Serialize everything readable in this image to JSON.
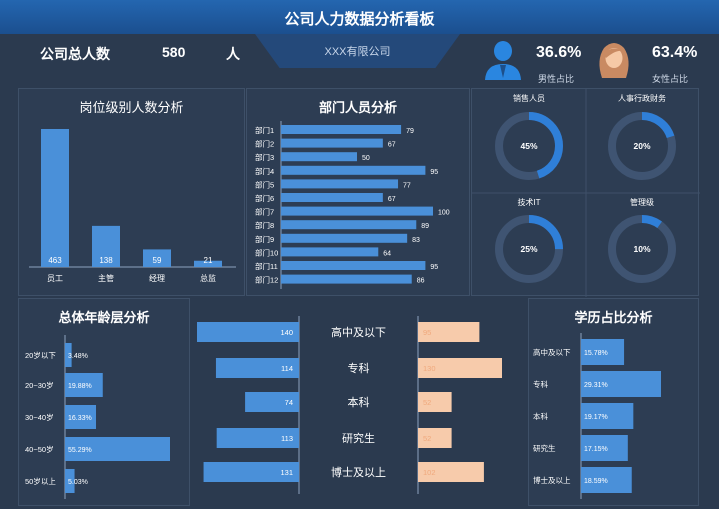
{
  "header": {
    "title": "公司人力数据分析看板",
    "company": "XXX有限公司",
    "total_label": "公司总人数",
    "total_value": "580",
    "total_unit": "人",
    "male_pct": "36.6%",
    "male_label": "男性占比",
    "female_pct": "63.4%",
    "female_label": "女性占比"
  },
  "colors": {
    "bar": "#4a90d9",
    "peach": "#f7cbab",
    "ring_track": "#3f5472",
    "ring_fill": "#2f7fd8",
    "header_bg": "#1f5aa0"
  },
  "panels": {
    "level_title": "岗位级别人数分析",
    "dept_title": "部门人员分析",
    "age_title": "总体年龄层分析",
    "edu_title": "学历占比分析"
  },
  "chart_data": [
    {
      "id": "level",
      "type": "bar",
      "title": "岗位级别人数分析",
      "categories": [
        "员工",
        "主管",
        "经理",
        "总监"
      ],
      "values": [
        463,
        138,
        59,
        21
      ]
    },
    {
      "id": "dept",
      "type": "bar",
      "orientation": "horizontal",
      "title": "部门人员分析",
      "categories": [
        "部门1",
        "部门2",
        "部门3",
        "部门4",
        "部门5",
        "部门6",
        "部门7",
        "部门8",
        "部门9",
        "部门10",
        "部门11",
        "部门12"
      ],
      "values": [
        79,
        67,
        50,
        95,
        77,
        67,
        100,
        89,
        83,
        64,
        95,
        86
      ]
    },
    {
      "id": "rings",
      "type": "pie",
      "style": "donut",
      "categories": [
        "销售人员",
        "人事行政财务",
        "技术IT",
        "管理级"
      ],
      "values": [
        45,
        20,
        25,
        10
      ],
      "labels": [
        "45%",
        "20%",
        "25%",
        "10%"
      ]
    },
    {
      "id": "age",
      "type": "bar",
      "orientation": "horizontal",
      "title": "总体年龄层分析",
      "categories": [
        "20岁以下",
        "20~30岁",
        "30~40岁",
        "40~50岁",
        "50岁以上"
      ],
      "values": [
        3.48,
        19.88,
        16.33,
        55.29,
        5.03
      ],
      "labels": [
        "3.48%",
        "19.88%",
        "16.33%",
        "55.29%",
        "5.03%"
      ]
    },
    {
      "id": "butterfly",
      "type": "bar",
      "orientation": "horizontal",
      "categories": [
        "高中及以下",
        "专科",
        "本科",
        "研究生",
        "博士及以上"
      ],
      "series": [
        {
          "values": [
            140,
            114,
            74,
            113,
            131
          ]
        },
        {
          "values": [
            95,
            130,
            52,
            52,
            102
          ]
        }
      ]
    },
    {
      "id": "edu",
      "type": "bar",
      "orientation": "horizontal",
      "title": "学历占比分析",
      "categories": [
        "高中及以下",
        "专科",
        "本科",
        "研究生",
        "博士及以上"
      ],
      "values": [
        15.78,
        29.31,
        19.17,
        17.15,
        18.59
      ],
      "labels": [
        "15.78%",
        "29.31%",
        "19.17%",
        "17.15%",
        "18.59%"
      ]
    }
  ]
}
